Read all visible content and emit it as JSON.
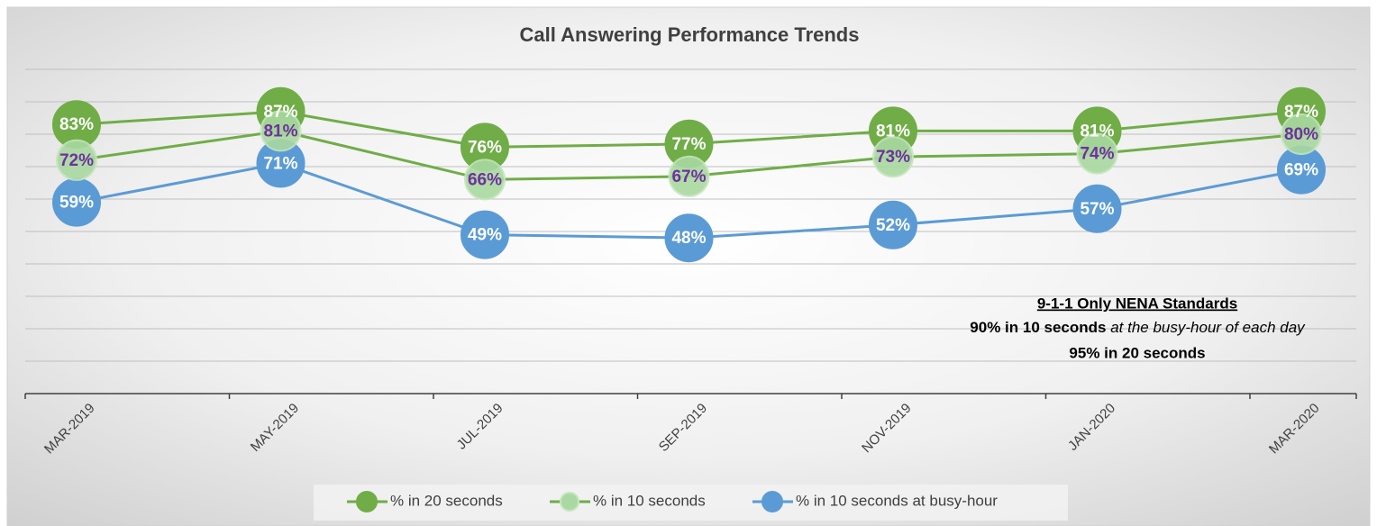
{
  "chart_data": {
    "type": "line",
    "title": "Call Answering Performance Trends",
    "categories": [
      "MAR-2019",
      "MAY-2019",
      "JUL-2019",
      "SEP-2019",
      "NOV-2019",
      "JAN-2020",
      "MAR-2020"
    ],
    "series": [
      {
        "name": "% in 20 seconds",
        "color": "#70ad47",
        "marker_color": "#70ad47",
        "label_color": "#ffffff",
        "values": [
          83,
          87,
          76,
          77,
          81,
          81,
          87
        ],
        "value_labels": [
          "83%",
          "87%",
          "76%",
          "77%",
          "81%",
          "81%",
          "87%"
        ]
      },
      {
        "name": "% in 10 seconds",
        "color": "#70ad47",
        "marker_color": "#a9d9a0",
        "label_color": "#7030a0",
        "values": [
          72,
          81,
          66,
          67,
          73,
          74,
          80
        ],
        "value_labels": [
          "72%",
          "81%",
          "66%",
          "67%",
          "73%",
          "74%",
          "80%"
        ]
      },
      {
        "name": "% in 10 seconds at busy-hour",
        "color": "#5b9bd5",
        "marker_color": "#5b9bd5",
        "label_color": "#ffffff",
        "values": [
          59,
          71,
          49,
          48,
          52,
          57,
          69
        ],
        "value_labels": [
          "59%",
          "71%",
          "49%",
          "48%",
          "52%",
          "57%",
          "69%"
        ]
      }
    ],
    "ylim": [
      0,
      100
    ],
    "yticks": [
      0,
      10,
      20,
      30,
      40,
      50,
      60,
      70,
      80,
      90,
      100
    ],
    "grid": true,
    "legend": "bottom",
    "annotations": [
      {
        "text": "9-1-1 Only NENA Standards"
      },
      {
        "text": "90% in 10 seconds",
        "text_italic": " at the busy-hour of each day"
      },
      {
        "text": "95% in 20 seconds"
      }
    ]
  }
}
